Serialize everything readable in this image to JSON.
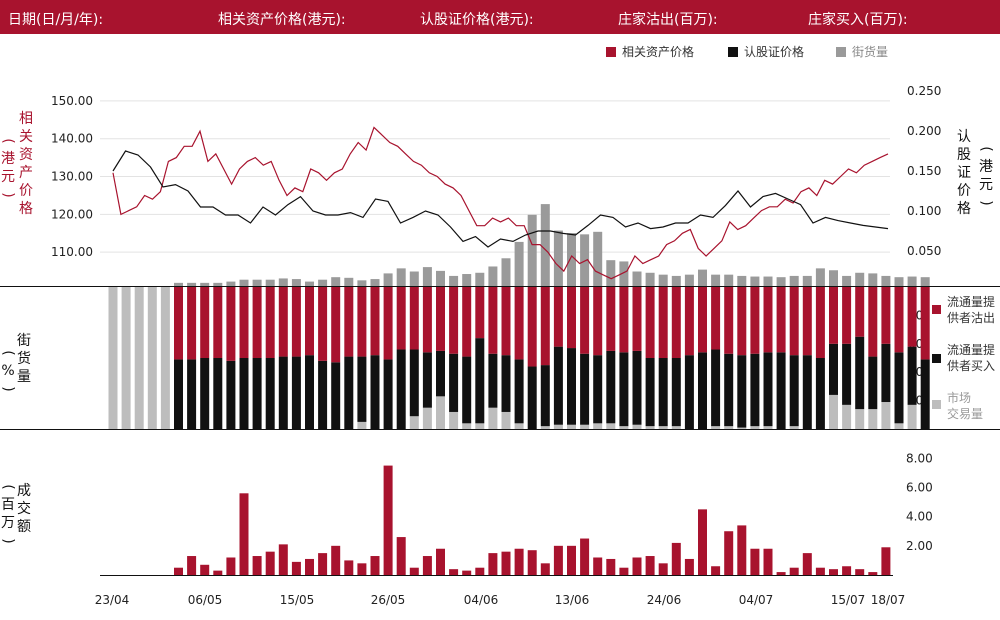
{
  "header": {
    "date_label": "日期(日/月/年):",
    "asset_price_label": "相关资产价格(港元):",
    "warrant_price_label": "认股证价格(港元):",
    "mm_sell_label": "庄家沽出(百万):",
    "mm_buy_label": "庄家买入(百万):"
  },
  "colors": {
    "crimson": "#a8132e",
    "black": "#111111",
    "gray": "#9a9a9a",
    "lightgray": "#bdbdbd"
  },
  "top_panel": {
    "legend": {
      "asset": "相关资产价格",
      "warrant": "认股证价格",
      "street": "街货量"
    },
    "left_title_chars": [
      "相",
      "关",
      "资",
      "产",
      "价",
      "格"
    ],
    "left_unit": "港元",
    "right_title_chars": [
      "认",
      "股",
      "证",
      "价",
      "格"
    ],
    "right_unit": "港元"
  },
  "middle_panel": {
    "left_label_chars": [
      "街",
      "货",
      "量"
    ],
    "left_unit": "%",
    "legend": {
      "sell": [
        "流通量提",
        "供者沽出"
      ],
      "buy": [
        "流通量提",
        "供者买入"
      ],
      "market": [
        "市场",
        "交易量"
      ]
    }
  },
  "bottom_panel": {
    "left_label_chars": [
      "成",
      "交",
      "额"
    ],
    "left_unit": "百万"
  },
  "x_tick_labels": [
    "23/04",
    "06/05",
    "15/05",
    "26/05",
    "04/06",
    "13/06",
    "24/06",
    "04/07",
    "15/07",
    "18/07"
  ],
  "chart_data": [
    {
      "type": "line",
      "x_axis": "date",
      "ylim_left": [
        100,
        155
      ],
      "ylim_right": [
        0,
        0.26
      ],
      "left_ticks": [
        "110.00",
        "120.00",
        "130.00",
        "140.00",
        "150.00"
      ],
      "right_ticks": [
        "0.050",
        "0.100",
        "0.150",
        "0.200",
        "0.250"
      ],
      "series": [
        {
          "name": "相关资产价格",
          "axis": "left",
          "values": [
            131,
            120,
            121,
            122,
            125,
            124,
            126,
            134,
            135,
            138,
            138,
            142,
            134,
            136,
            132,
            128,
            132,
            134,
            135,
            133,
            134,
            129,
            125,
            127,
            126,
            132,
            131,
            129,
            131,
            132,
            136,
            139,
            137,
            143,
            141,
            139,
            138,
            136,
            134,
            133,
            131,
            130,
            128,
            127,
            125,
            121,
            117,
            117,
            119,
            118,
            119,
            117,
            117,
            112,
            112,
            110,
            107,
            105,
            109,
            107,
            108,
            105,
            104,
            103,
            104,
            105,
            109,
            107,
            108,
            109,
            112,
            113,
            115,
            116,
            111,
            109,
            111,
            113,
            118,
            116,
            117,
            119,
            121,
            122,
            122,
            124,
            123,
            126,
            127,
            125,
            129,
            128,
            130,
            132,
            131,
            133,
            134,
            135,
            136
          ]
        },
        {
          "name": "认股证价格",
          "axis": "right",
          "values": [
            0.15,
            0.175,
            0.17,
            0.155,
            0.13,
            0.133,
            0.125,
            0.105,
            0.105,
            0.095,
            0.095,
            0.085,
            0.105,
            0.095,
            0.108,
            0.118,
            0.1,
            0.095,
            0.095,
            0.098,
            0.092,
            0.115,
            0.112,
            0.085,
            0.092,
            0.1,
            0.095,
            0.08,
            0.062,
            0.068,
            0.055,
            0.065,
            0.062,
            0.07,
            0.075,
            0.075,
            0.072,
            0.07,
            0.082,
            0.095,
            0.092,
            0.08,
            0.085,
            0.078,
            0.08,
            0.085,
            0.085,
            0.095,
            0.092,
            0.107,
            0.125,
            0.105,
            0.118,
            0.122,
            0.115,
            0.108,
            0.085,
            0.092,
            0.088,
            0.085,
            0.082,
            0.08,
            0.078
          ]
        },
        {
          "name": "街货量",
          "axis": "hidden",
          "values": [
            0,
            0,
            0,
            0,
            0,
            0.5,
            0.5,
            0.5,
            0.5,
            0.7,
            1.0,
            1.0,
            1.0,
            1.2,
            1.1,
            0.7,
            1.0,
            1.4,
            1.3,
            0.9,
            1.1,
            2.0,
            2.8,
            2.3,
            3.0,
            2.4,
            1.6,
            1.9,
            2.1,
            3.1,
            4.4,
            7.0,
            11.3,
            13.0,
            8.8,
            8.4,
            8.2,
            8.6,
            4.1,
            3.9,
            2.3,
            2.1,
            1.8,
            1.6,
            1.8,
            2.6,
            1.8,
            1.8,
            1.6,
            1.5,
            1.5,
            1.4,
            1.6,
            1.6,
            2.8,
            2.5,
            1.6,
            2.1,
            2.0,
            1.6,
            1.4,
            1.5,
            1.4
          ]
        }
      ]
    },
    {
      "type": "bar",
      "stacked": true,
      "ylim": [
        0,
        100
      ],
      "y_ticks": [
        "20",
        "40",
        "60",
        "80"
      ],
      "series": [
        {
          "name": "市场交易量",
          "values": [
            100,
            100,
            100,
            100,
            100,
            0,
            0,
            0,
            0,
            0,
            0,
            0,
            0,
            0,
            0,
            0,
            0,
            0,
            0,
            5,
            0,
            0,
            0,
            9,
            15,
            23,
            12,
            4,
            4,
            15,
            12,
            4,
            0,
            2,
            3,
            3,
            3,
            4,
            4,
            2,
            3,
            2,
            2,
            2,
            0,
            0,
            2,
            2,
            1,
            2,
            2,
            0,
            2,
            0,
            0,
            24,
            17,
            14,
            14,
            19,
            4,
            17,
            0
          ]
        },
        {
          "name": "流通量提供者买入",
          "values": [
            0,
            0,
            0,
            0,
            0,
            49,
            49,
            50,
            50,
            48,
            50,
            50,
            50,
            51,
            51,
            52,
            48,
            47,
            51,
            46,
            52,
            49,
            56,
            47,
            39,
            32,
            41,
            47,
            60,
            38,
            40,
            45,
            44,
            43,
            55,
            54,
            50,
            48,
            51,
            52,
            52,
            48,
            48,
            48,
            52,
            54,
            54,
            51,
            51,
            51,
            52,
            54,
            50,
            52,
            50,
            36,
            43,
            51,
            37,
            41,
            50,
            41,
            49
          ]
        },
        {
          "name": "流通量提供者沽出",
          "values": [
            0,
            0,
            0,
            0,
            0,
            51,
            51,
            50,
            50,
            52,
            50,
            50,
            50,
            49,
            49,
            48,
            52,
            53,
            49,
            49,
            48,
            51,
            44,
            44,
            46,
            45,
            47,
            49,
            36,
            47,
            48,
            51,
            56,
            55,
            42,
            43,
            47,
            48,
            45,
            46,
            45,
            50,
            50,
            50,
            48,
            46,
            44,
            47,
            48,
            47,
            46,
            46,
            48,
            48,
            50,
            40,
            40,
            35,
            49,
            40,
            46,
            42,
            51
          ]
        }
      ]
    },
    {
      "type": "bar",
      "ylim": [
        0,
        8.5
      ],
      "y_ticks": [
        "2.00",
        "4.00",
        "6.00",
        "8.00"
      ],
      "series": [
        {
          "name": "成交额",
          "values": [
            0,
            0,
            0,
            0,
            0,
            0.5,
            1.3,
            0.7,
            0.3,
            1.2,
            5.6,
            1.3,
            1.6,
            2.1,
            0.9,
            1.1,
            1.5,
            2.0,
            1.0,
            0.8,
            1.3,
            7.5,
            2.6,
            0.5,
            1.3,
            1.8,
            0.4,
            0.3,
            0.5,
            1.5,
            1.6,
            1.8,
            1.7,
            0.8,
            2.0,
            2.0,
            2.5,
            1.2,
            1.1,
            0.5,
            1.2,
            1.3,
            0.8,
            2.2,
            1.1,
            4.5,
            0.6,
            3.0,
            3.4,
            1.8,
            1.8,
            0.2,
            0.5,
            1.5,
            0.5,
            0.4,
            0.6,
            0.4,
            0.2,
            1.9,
            0,
            0,
            0
          ]
        }
      ]
    }
  ]
}
